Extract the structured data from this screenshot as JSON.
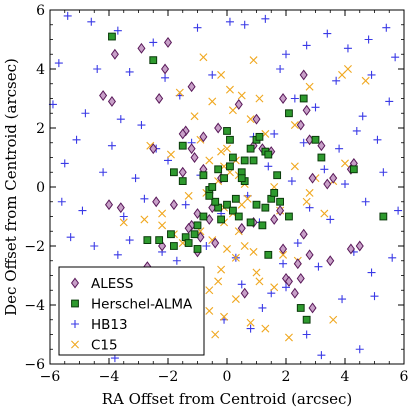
{
  "chart_data": {
    "type": "scatter",
    "xlabel": "RA Offset from Centroid (arcsec)",
    "ylabel": "Dec Offset from Centroid (arcsec)",
    "xlim": [
      -6,
      6
    ],
    "ylim": [
      -6,
      6
    ],
    "xticks": [
      "−6",
      "−4",
      "−2",
      "0",
      "2",
      "4",
      "6"
    ],
    "yticks": [
      "−6",
      "−4",
      "−2",
      "0",
      "2",
      "4",
      "6"
    ],
    "grid": false,
    "legend_position": "bottom-left",
    "series": [
      {
        "name": "ALESS",
        "marker": "diamond",
        "color": "#c8a0c8",
        "edge": "#5a1a5a",
        "x": [
          -2.9,
          -2.0,
          -3.8,
          -1.2,
          -2.3,
          -2.1,
          -1.4,
          -0.3,
          -0.2,
          0.4,
          0.9,
          1.2,
          1.5,
          1.9,
          2.6,
          2.5,
          2.8,
          3.2,
          3.4,
          4.3,
          4.2,
          -4.2,
          -3.9,
          -1.5,
          -2.7,
          -1.0,
          -0.6,
          -1.2,
          -0.5,
          -0.4,
          0.6,
          0.5,
          0.9,
          -1.1,
          -0.8,
          -1.5,
          1.0,
          2.0,
          2.4,
          2.8,
          2.6,
          -2.2,
          -1.0,
          1.9,
          2.1,
          2.3,
          2.5,
          2.9,
          4.5,
          3.5,
          -4.0,
          -3.6,
          -1.2,
          -2.5,
          3.6,
          4.2,
          2.7,
          1.8,
          1.6,
          -0.8,
          2.9,
          -2.4,
          -1.8,
          -1.3,
          -0.9
        ],
        "y": [
          4.7,
          4.9,
          4.5,
          3.4,
          3.0,
          4.0,
          1.9,
          2.0,
          0.3,
          2.8,
          1.4,
          1.3,
          1.2,
          3.0,
          3.8,
          2.1,
          1.6,
          1.4,
          0.1,
          0.8,
          0.6,
          3.1,
          2.9,
          1.8,
          -2.7,
          -0.9,
          -1.1,
          -1.3,
          -0.7,
          -1.9,
          -3.6,
          -1.4,
          -1.2,
          1.0,
          0.6,
          0.5,
          2.3,
          -3.1,
          -2.6,
          -2.3,
          -1.6,
          -2.0,
          -2.2,
          -2.1,
          -3.2,
          -3.6,
          -3.1,
          -4.1,
          -2.0,
          -2.5,
          -0.6,
          -0.7,
          1.3,
          1.3,
          0.3,
          -2.1,
          2.6,
          -0.8,
          -1.1,
          1.7,
          0.3,
          -0.5,
          -0.6,
          -1.4,
          -1.7
        ]
      },
      {
        "name": "Herschel-ALMA",
        "marker": "square",
        "color": "#2e9a2e",
        "edge": "#0a3a0a",
        "x": [
          -3.9,
          -2.5,
          -2.7,
          -1.8,
          -1.5,
          0.0,
          0.1,
          0.2,
          -0.1,
          0.5,
          0.6,
          0.8,
          1.0,
          1.1,
          1.3,
          1.4,
          0.9,
          1.7,
          2.1,
          2.6,
          3.0,
          3.2,
          4.3,
          5.3,
          -0.6,
          -0.5,
          -0.3,
          0.0,
          0.2,
          -0.2,
          0.4,
          -1.0,
          -1.4,
          -1.1,
          -1.3,
          -1.8,
          -0.8,
          -0.4,
          -0.6,
          -0.3,
          0.3,
          0.8,
          1.2,
          1.5,
          1.6,
          1.8,
          2.1,
          1.4,
          1.0,
          0.6,
          -2.3,
          -1.9,
          -1.0,
          2.7,
          2.5,
          0.5,
          0.1,
          -0.8,
          1.3,
          -1.5
        ],
        "y": [
          5.1,
          4.3,
          -1.8,
          0.5,
          0.2,
          1.9,
          1.6,
          1.0,
          0.3,
          0.5,
          0.9,
          1.3,
          1.6,
          1.7,
          1.2,
          1.1,
          0.9,
          0.4,
          2.5,
          3.0,
          1.6,
          1.0,
          0.6,
          -1.0,
          -0.1,
          0.0,
          -0.7,
          -0.6,
          -0.8,
          -1.1,
          -1.0,
          -1.3,
          -1.7,
          -1.6,
          -1.9,
          -2.0,
          -1.0,
          -0.5,
          -0.3,
          0.6,
          -0.4,
          -1.2,
          -1.3,
          -0.4,
          -0.2,
          -0.5,
          -1.0,
          -2.3,
          -0.6,
          0.2,
          -1.8,
          -1.6,
          -2.1,
          -4.5,
          -4.1,
          0.3,
          0.7,
          0.4,
          -0.7,
          1.4
        ]
      },
      {
        "name": "HB13",
        "marker": "plus",
        "color": "#3a3ae6",
        "x": [
          -5.4,
          -4.6,
          -3.7,
          -2.5,
          -1.0,
          0.1,
          0.6,
          1.3,
          2.0,
          2.7,
          3.4,
          4.1,
          4.8,
          5.4,
          5.7,
          -5.7,
          -4.4,
          -3.3,
          -2.1,
          -0.5,
          1.8,
          3.7,
          4.9,
          -5.9,
          -4.8,
          -3.6,
          -2.9,
          -1.6,
          2.3,
          3.0,
          4.6,
          5.5,
          -5.1,
          -3.9,
          -2.4,
          -1.2,
          0.9,
          1.6,
          2.6,
          3.8,
          4.4,
          5.1,
          -5.5,
          -4.2,
          -3.1,
          -2.0,
          -0.9,
          1.4,
          2.2,
          3.3,
          4.0,
          5.3,
          -5.6,
          -4.9,
          -3.5,
          -2.8,
          -1.4,
          -0.2,
          0.7,
          1.1,
          2.8,
          3.5,
          4.7,
          5.8,
          -5.3,
          -4.5,
          -3.7,
          -3.3,
          -2.2,
          -1.7,
          -0.7,
          0.3,
          1.9,
          2.4,
          3.1,
          4.3,
          4.9,
          5.6,
          -4.0,
          -1.3,
          0.5,
          1.5,
          2.0,
          3.9,
          5.0,
          -1.9,
          -0.1,
          0.8,
          1.2,
          2.7,
          3.2,
          4.5,
          -3.8
        ],
        "y": [
          5.8,
          5.6,
          5.3,
          4.9,
          5.4,
          5.6,
          5.5,
          5.7,
          4.5,
          4.8,
          5.2,
          4.7,
          5.0,
          5.4,
          4.4,
          4.2,
          4.0,
          3.9,
          3.7,
          3.8,
          4.0,
          3.6,
          3.8,
          2.8,
          2.5,
          2.3,
          2.1,
          3.1,
          3.0,
          2.7,
          2.4,
          2.9,
          1.6,
          1.4,
          1.3,
          1.5,
          1.7,
          1.8,
          1.5,
          1.3,
          1.9,
          1.6,
          0.8,
          0.5,
          0.3,
          0.9,
          0.4,
          0.7,
          0.2,
          0.6,
          0.1,
          0.5,
          -0.5,
          -0.8,
          -1.0,
          -0.4,
          -0.6,
          -0.9,
          -0.3,
          -1.2,
          -0.7,
          -1.1,
          -0.5,
          -0.8,
          -1.7,
          -2.0,
          -2.3,
          -1.8,
          -2.2,
          -2.5,
          -2.0,
          -2.4,
          -2.6,
          -1.9,
          -2.7,
          -2.2,
          -2.9,
          -2.4,
          -3.1,
          -3.0,
          -3.3,
          -3.6,
          -3.4,
          -3.8,
          -3.7,
          -4.2,
          -4.5,
          -4.8,
          -4.1,
          -5.0,
          -5.7,
          -5.5,
          -5.8
        ]
      },
      {
        "name": "C15",
        "marker": "x",
        "color": "#f0a820",
        "x": [
          -0.8,
          0.9,
          -0.2,
          0.1,
          0.5,
          -0.5,
          0.2,
          0.8,
          -1.6,
          -1.1,
          1.1,
          1.3,
          2.3,
          2.8,
          3.9,
          4.1,
          4.7,
          -2.6,
          -1.9,
          -0.9,
          -0.2,
          0.0,
          0.3,
          -0.1,
          0.1,
          0.4,
          -0.3,
          0.6,
          -0.6,
          1.6,
          2.3,
          3.0,
          3.6,
          -1.3,
          -0.7,
          -0.4,
          -0.1,
          0.2,
          0.5,
          0.7,
          1.8,
          2.7,
          3.3,
          -3.5,
          -2.8,
          -2.2,
          -1.8,
          -1.5,
          -0.9,
          -0.5,
          0.0,
          0.3,
          0.9,
          1.9,
          2.4,
          -0.2,
          -0.3,
          -0.6,
          -1.0,
          0.3,
          1.0,
          1.6,
          -3.1,
          -2.4,
          -0.6,
          -0.4,
          0.8,
          1.3,
          2.1,
          3.6,
          -0.1,
          0.4,
          0.6,
          -2.2,
          1.1,
          -1.7,
          -0.1,
          2.8,
          4.0
        ],
        "y": [
          4.4,
          4.3,
          3.8,
          3.3,
          3.1,
          2.9,
          2.6,
          2.3,
          3.2,
          2.4,
          3.0,
          1.8,
          2.1,
          3.4,
          3.8,
          4.0,
          3.6,
          1.4,
          1.1,
          1.6,
          1.2,
          1.3,
          0.9,
          0.7,
          0.5,
          0.4,
          0.2,
          0.1,
          0.9,
          0.0,
          0.7,
          0.3,
          0.2,
          -0.3,
          -0.2,
          -0.5,
          -0.7,
          -0.9,
          -0.6,
          -0.4,
          -0.8,
          -0.5,
          -0.9,
          -1.2,
          -1.1,
          -1.3,
          -1.6,
          -1.9,
          -1.5,
          -1.8,
          -2.1,
          -2.4,
          -2.2,
          -2.3,
          -2.5,
          -2.8,
          -3.2,
          -3.5,
          -3.1,
          -3.8,
          -2.9,
          -3.4,
          -4.0,
          -4.6,
          -4.2,
          -5.0,
          -4.6,
          -4.8,
          -5.1,
          -4.5,
          -1.2,
          -1.5,
          -2.0,
          -0.9,
          -3.2,
          -3.3,
          -4.4,
          -0.2,
          0.8
        ]
      }
    ]
  }
}
